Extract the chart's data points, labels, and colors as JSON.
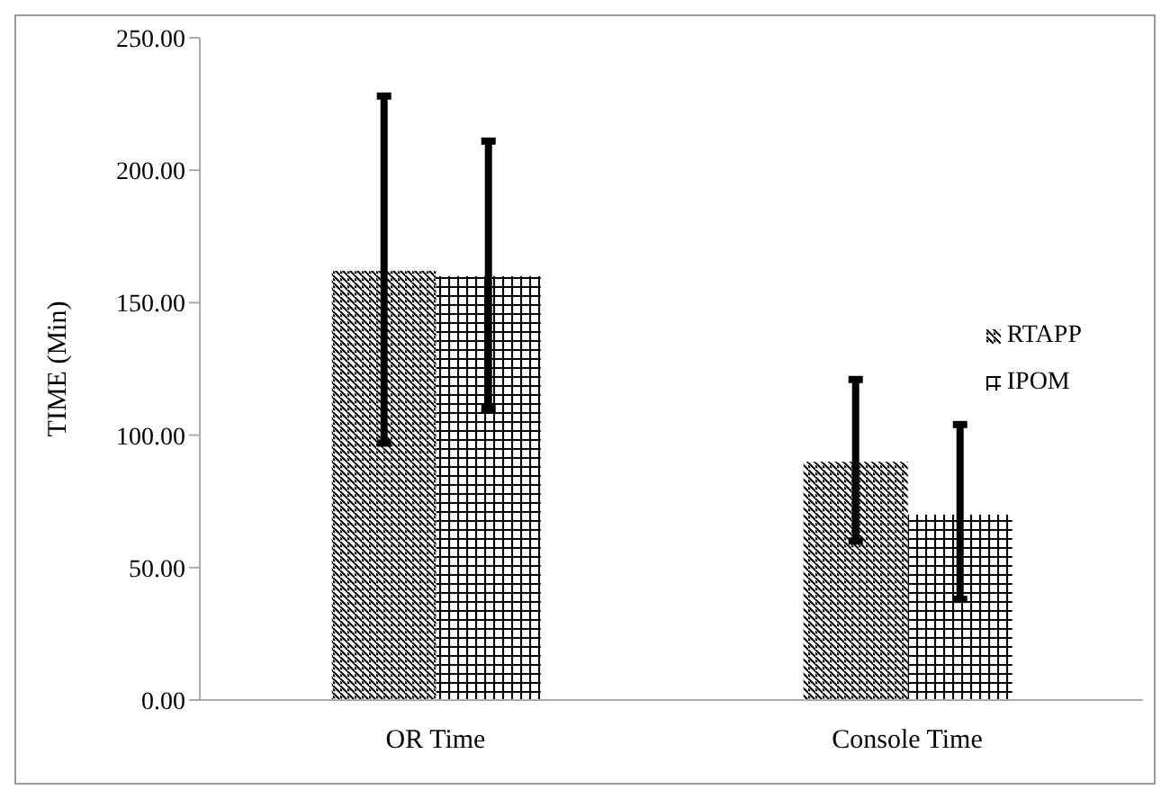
{
  "chart_data": {
    "type": "bar",
    "ylabel": "TIME (Min)",
    "categories": [
      "OR Time",
      "Console Time"
    ],
    "series": [
      {
        "name": "RTAPP",
        "color": "#000000",
        "values": [
          162,
          90
        ],
        "errors": [
          [
            97,
            228
          ],
          [
            60,
            121
          ]
        ]
      },
      {
        "name": "IPOM",
        "color": "#000000",
        "values": [
          160,
          70
        ],
        "errors": [
          [
            110,
            211
          ],
          [
            38,
            104
          ]
        ]
      }
    ],
    "ylim": [
      0,
      250
    ],
    "yticks": [
      {
        "value": 0,
        "label": "0.00"
      },
      {
        "value": 50,
        "label": "50.00"
      },
      {
        "value": 100,
        "label": "100.00"
      },
      {
        "value": 150,
        "label": "150.00"
      },
      {
        "value": 200,
        "label": "200.00"
      },
      {
        "value": 250,
        "label": "250.00"
      }
    ],
    "grid": false,
    "legend": "right"
  }
}
